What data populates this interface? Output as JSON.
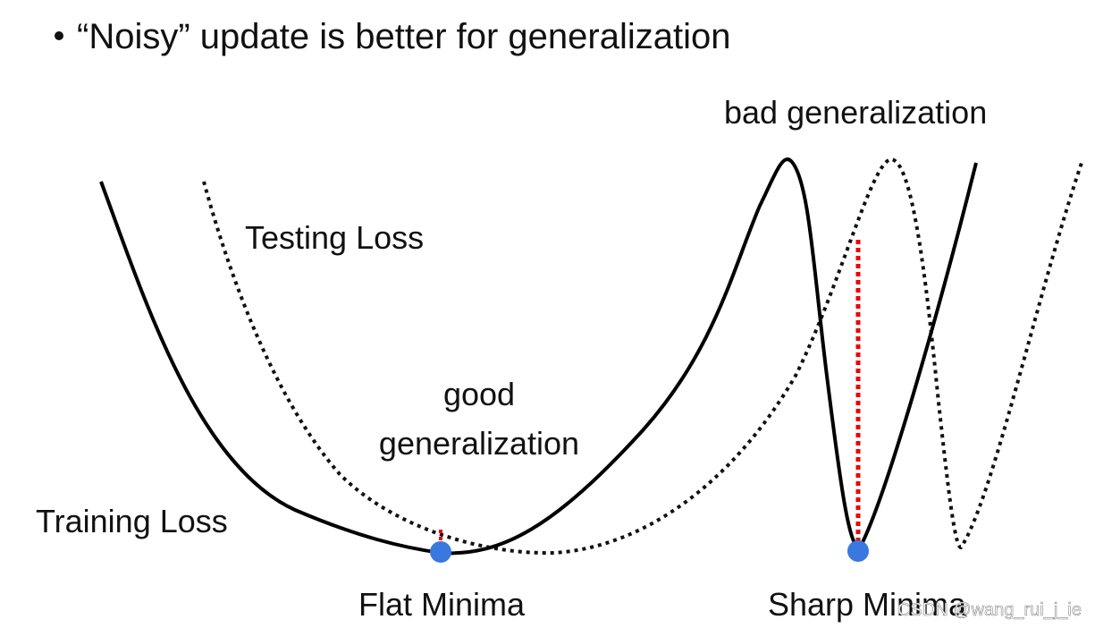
{
  "header": {
    "title": "“Noisy” update is better for generalization"
  },
  "labels": {
    "bad_generalization": "bad generalization",
    "testing_loss": "Testing Loss",
    "good_generalization": [
      "good",
      "generalization"
    ],
    "training_loss": "Training Loss",
    "flat_minima": "Flat Minima",
    "sharp_minima": "Sharp Minima"
  },
  "watermark": "CSDN @wang_rui_j_ie"
}
